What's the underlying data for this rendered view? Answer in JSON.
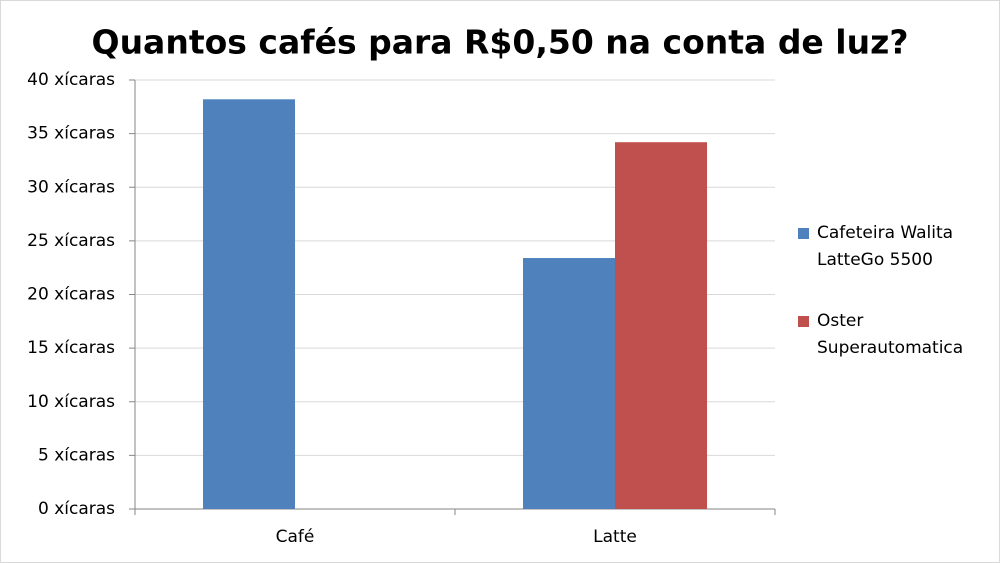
{
  "chart_data": {
    "type": "bar",
    "title": "Quantos cafés para R$0,50 na conta de luz?",
    "categories": [
      "Café",
      "Latte"
    ],
    "series": [
      {
        "name": "Cafeteira Walita LatteGo 5500",
        "color": "#4f81bd",
        "values": [
          38.2,
          23.4
        ]
      },
      {
        "name": "Oster Superautomatica",
        "color": "#c0504d",
        "values": [
          null,
          34.2
        ]
      }
    ],
    "ylim": [
      0,
      40
    ],
    "yticks": [
      {
        "value": 0,
        "label": "0 xícaras"
      },
      {
        "value": 5,
        "label": "5 xícaras"
      },
      {
        "value": 10,
        "label": "10 xícaras"
      },
      {
        "value": 15,
        "label": "15 xícaras"
      },
      {
        "value": 20,
        "label": "20 xícaras"
      },
      {
        "value": 25,
        "label": "25 xícaras"
      },
      {
        "value": 30,
        "label": "30 xícaras"
      },
      {
        "value": 35,
        "label": "35 xícaras"
      },
      {
        "value": 40,
        "label": "40 xícaras"
      }
    ],
    "grid": true,
    "legend": "right"
  }
}
